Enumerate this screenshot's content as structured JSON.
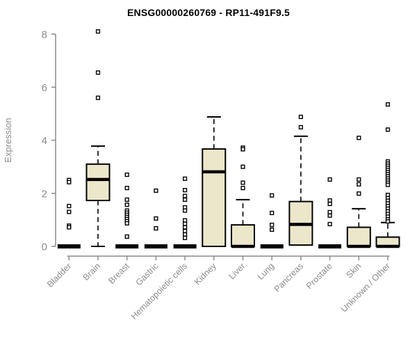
{
  "chart_data": {
    "type": "boxplot",
    "title": "ENSG00000260769 - RP11-491F9.5",
    "ylabel": "Expression",
    "xlabel": "",
    "ylim": [
      0,
      8
    ],
    "yticks": [
      0,
      2,
      4,
      6,
      8
    ],
    "grid": false,
    "legend": "none",
    "categories": [
      "Bladder",
      "Brain",
      "Breast",
      "Gastric",
      "Hematopoietic cells",
      "Kidney",
      "Liver",
      "Lung",
      "Pancreas",
      "Prostate",
      "Skin",
      "Unknown / Other"
    ],
    "series": [
      {
        "name": "Bladder",
        "q1": 0,
        "median": 0,
        "q3": 0,
        "whisker_low": 0,
        "whisker_high": 0,
        "outliers": [
          2.5,
          2.42,
          1.52,
          1.3,
          0.78,
          0.72
        ]
      },
      {
        "name": "Brain",
        "q1": 1.73,
        "median": 2.52,
        "q3": 3.1,
        "whisker_low": 0,
        "whisker_high": 3.78,
        "outliers": [
          8.1,
          6.55,
          5.6
        ]
      },
      {
        "name": "Breast",
        "q1": 0,
        "median": 0,
        "q3": 0,
        "whisker_low": 0,
        "whisker_high": 0,
        "outliers": [
          2.7,
          2.2,
          1.76,
          1.57,
          1.35,
          1.27,
          1.19,
          1.11,
          1.03,
          0.95,
          0.87,
          0.37
        ]
      },
      {
        "name": "Gastric",
        "q1": 0,
        "median": 0,
        "q3": 0,
        "whisker_low": 0,
        "whisker_high": 0,
        "outliers": [
          2.1,
          1.05,
          0.68
        ]
      },
      {
        "name": "Hematopoietic cells",
        "q1": 0,
        "median": 0,
        "q3": 0,
        "whisker_low": 0,
        "whisker_high": 0,
        "outliers": [
          2.55,
          2.12,
          1.9,
          1.76,
          1.47,
          1.35,
          0.98,
          0.85,
          0.72,
          0.58,
          0.45,
          0.32
        ]
      },
      {
        "name": "Kidney",
        "q1": 0,
        "median": 2.81,
        "q3": 3.67,
        "whisker_low": 0,
        "whisker_high": 4.88,
        "outliers": []
      },
      {
        "name": "Liver",
        "q1": 0,
        "median": 0,
        "q3": 0.81,
        "whisker_low": 0,
        "whisker_high": 1.76,
        "outliers": [
          3.72,
          3.66,
          3.0,
          2.4,
          2.2
        ]
      },
      {
        "name": "Lung",
        "q1": 0,
        "median": 0,
        "q3": 0,
        "whisker_low": 0,
        "whisker_high": 0,
        "outliers": [
          1.92,
          1.26,
          0.81,
          0.63
        ]
      },
      {
        "name": "Pancreas",
        "q1": 0.05,
        "median": 0.83,
        "q3": 1.69,
        "whisker_low": 0.05,
        "whisker_high": 4.15,
        "outliers": [
          4.88,
          4.49
        ]
      },
      {
        "name": "Prostate",
        "q1": 0,
        "median": 0,
        "q3": 0,
        "whisker_low": 0,
        "whisker_high": 0,
        "outliers": [
          2.52,
          1.73,
          1.6,
          1.29,
          1.16,
          0.84
        ]
      },
      {
        "name": "Skin",
        "q1": 0,
        "median": 0,
        "q3": 0.72,
        "whisker_low": 0,
        "whisker_high": 1.42,
        "outliers": [
          4.09,
          2.52,
          2.34,
          1.99
        ]
      },
      {
        "name": "Unknown / Other",
        "q1": 0,
        "median": 0,
        "q3": 0.35,
        "whisker_low": 0,
        "whisker_high": 0.9,
        "outliers": [
          5.35,
          4.4,
          3.2,
          3.12,
          3.04,
          2.96,
          2.88,
          2.8,
          2.72,
          2.64,
          2.56,
          2.48,
          2.4,
          2.32,
          1.94,
          1.82,
          1.72,
          1.62,
          1.52,
          1.42,
          1.32,
          1.22,
          1.12,
          1.02,
          0.94
        ]
      }
    ],
    "colors": {
      "box_fill": "#ECE7CB",
      "box_stroke": "#000000",
      "median": "#000000",
      "outlier_stroke": "#000000",
      "outlier_fill": "#FFFFFF",
      "axis": "#8C8C8C",
      "title": "#000000",
      "background": "#FFFFFF"
    }
  }
}
